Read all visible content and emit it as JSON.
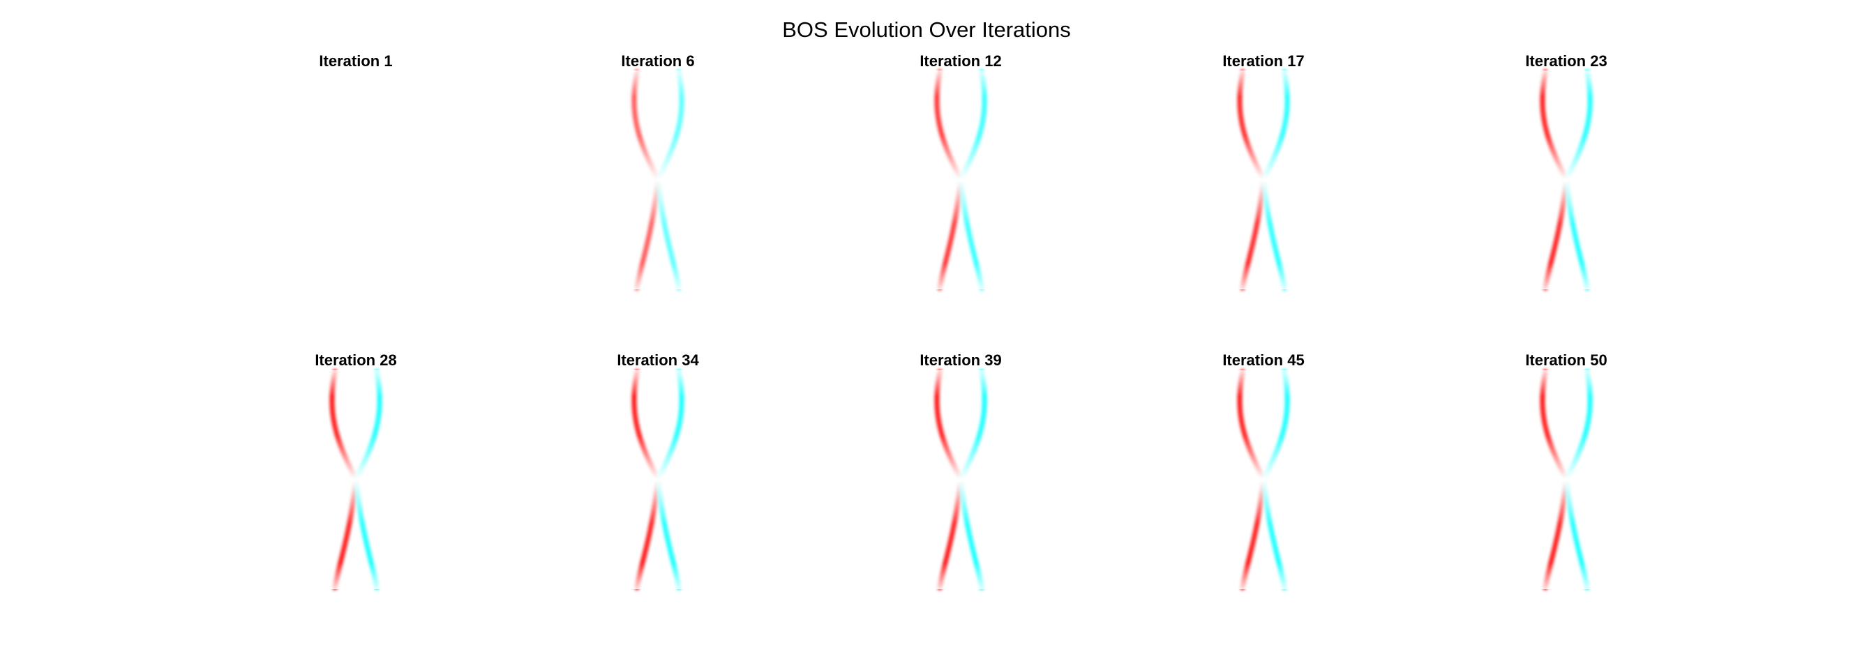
{
  "chart_data": {
    "type": "image-grid",
    "title": "BOS Evolution Over Iterations",
    "grid": {
      "rows": 2,
      "cols": 5
    },
    "axes_visible": false,
    "colors": {
      "positive": "#ff0000",
      "negative": "#00ffff",
      "background": "#ffffff"
    },
    "panels": [
      {
        "title": "Iteration 1",
        "iteration": 1,
        "intensity": 0.0
      },
      {
        "title": "Iteration 6",
        "iteration": 6,
        "intensity": 0.55
      },
      {
        "title": "Iteration 12",
        "iteration": 12,
        "intensity": 0.8
      },
      {
        "title": "Iteration 17",
        "iteration": 17,
        "intensity": 0.9
      },
      {
        "title": "Iteration 23",
        "iteration": 23,
        "intensity": 0.95
      },
      {
        "title": "Iteration 28",
        "iteration": 28,
        "intensity": 1.0
      },
      {
        "title": "Iteration 34",
        "iteration": 34,
        "intensity": 1.0
      },
      {
        "title": "Iteration 39",
        "iteration": 39,
        "intensity": 1.0
      },
      {
        "title": "Iteration 45",
        "iteration": 45,
        "intensity": 1.0
      },
      {
        "title": "Iteration 50",
        "iteration": 50,
        "intensity": 1.0
      }
    ]
  }
}
